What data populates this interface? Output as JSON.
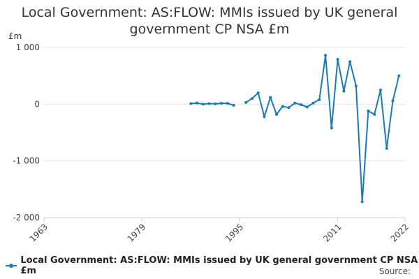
{
  "page": {
    "title_line1": "Local Government: AS:FLOW: MMIs issued by UK general",
    "title_line2": "government CP NSA £m",
    "unit_label": "£m",
    "source_label": "Source:"
  },
  "colors": {
    "series": "#1b7ab5",
    "grid": "#e3e3e3",
    "axis": "#cccccc"
  },
  "chart_data": {
    "type": "line",
    "title": "Local Government: AS:FLOW: MMIs issued by UK general government CP NSA £m",
    "ylabel": "£m",
    "xlabel": "",
    "xlim": [
      1963,
      2022
    ],
    "ylim": [
      -2000,
      1000
    ],
    "x_ticks": [
      1963,
      1979,
      1995,
      2011,
      2022
    ],
    "y_ticks": [
      1000,
      0,
      -1000,
      -2000
    ],
    "y_tick_labels": [
      "1 000",
      "0",
      "-1 000",
      "-2 000"
    ],
    "grid": true,
    "legend": "bottom",
    "series": [
      {
        "name": "Local Government: AS:FLOW: MMIs issued by UK general government CP NSA £m",
        "points": [
          [
            1987,
            10
          ],
          [
            1988,
            20
          ],
          [
            1989,
            0
          ],
          [
            1990,
            10
          ],
          [
            1991,
            5
          ],
          [
            1992,
            15
          ],
          [
            1993,
            15
          ],
          [
            1994,
            -20
          ],
          [
            null,
            null
          ],
          [
            1996,
            30
          ],
          [
            1997,
            100
          ],
          [
            1998,
            200
          ],
          [
            1999,
            -220
          ],
          [
            2000,
            120
          ],
          [
            2001,
            -180
          ],
          [
            2002,
            -40
          ],
          [
            2003,
            -60
          ],
          [
            2004,
            20
          ],
          [
            2005,
            -10
          ],
          [
            2006,
            -50
          ],
          [
            2007,
            20
          ],
          [
            2008,
            80
          ],
          [
            2009,
            860
          ],
          [
            2010,
            -420
          ],
          [
            2011,
            790
          ],
          [
            2012,
            230
          ],
          [
            2013,
            750
          ],
          [
            2014,
            320
          ],
          [
            2015,
            -1720
          ],
          [
            2016,
            -120
          ],
          [
            2017,
            -180
          ],
          [
            2018,
            250
          ],
          [
            2019,
            -780
          ],
          [
            2020,
            60
          ],
          [
            2021,
            500
          ]
        ]
      }
    ]
  }
}
